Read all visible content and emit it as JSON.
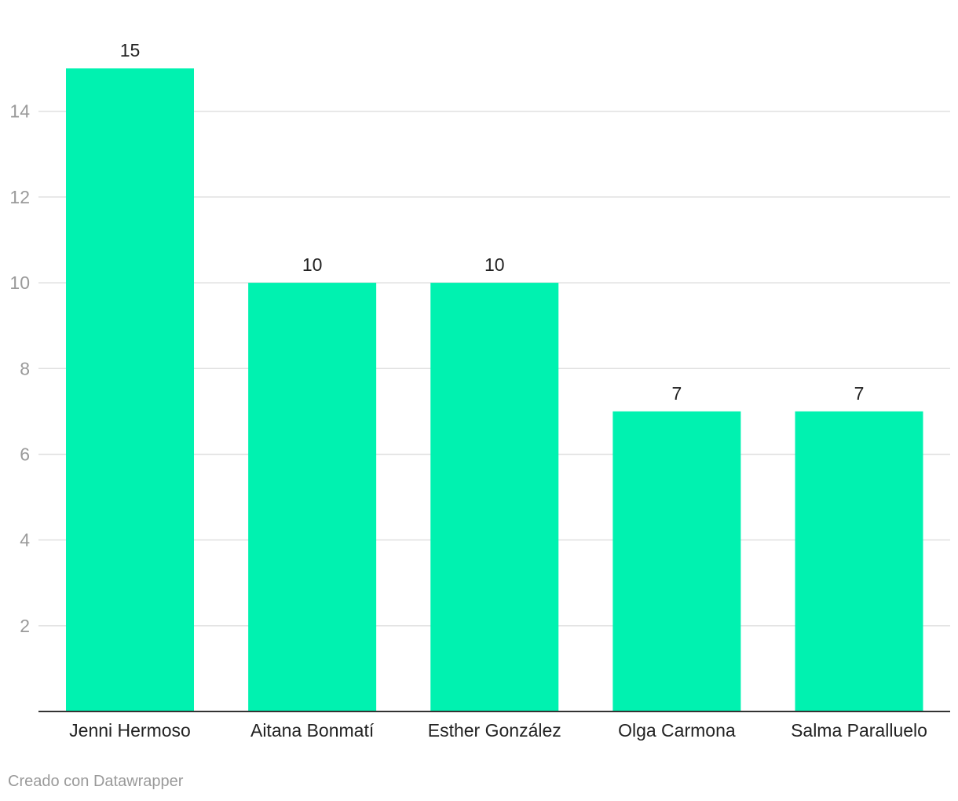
{
  "chart_data": {
    "type": "bar",
    "categories": [
      "Jenni Hermoso",
      "Aitana Bonmatí",
      "Esther González",
      "Olga Carmona",
      "Salma Paralluelo"
    ],
    "values": [
      15,
      10,
      10,
      7,
      7
    ],
    "data_labels": [
      "15",
      "10",
      "10",
      "7",
      "7"
    ],
    "y_ticks": [
      2,
      4,
      6,
      8,
      10,
      12,
      14
    ],
    "ylim": [
      0,
      15.9
    ],
    "grid": true,
    "title": "",
    "xlabel": "",
    "ylabel": "",
    "bar_color": "#00f2b0"
  },
  "footer": {
    "credit": "Creado con Datawrapper"
  }
}
